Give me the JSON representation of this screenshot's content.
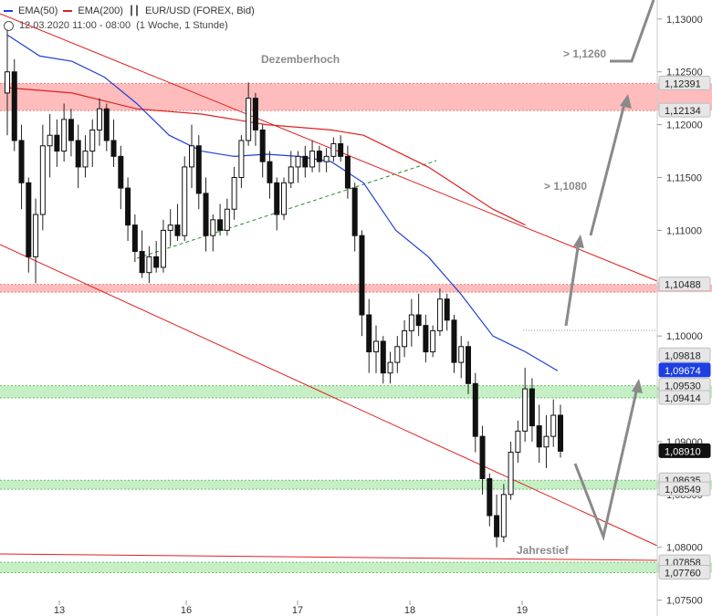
{
  "legend": {
    "ema50_label": "EMA(50)",
    "ema200_label": "EMA(200)",
    "symbol_label": "EUR/USD (FOREX, Bid)",
    "date_range": "12.03.2020 11:00 - 08:00",
    "timeframe": "(1 Woche, 1 Stunde)",
    "colors": {
      "ema50": "#1f3fd8",
      "ema200": "#e02020"
    }
  },
  "chart_data": {
    "type": "candlestick",
    "ylim": [
      1.0735,
      1.1318
    ],
    "y_ticks": [
      "1,13000",
      "1,12500",
      "1,12000",
      "1,11500",
      "1,11000",
      "1,10500",
      "1,10000",
      "1,09500",
      "1,09000",
      "1,08500",
      "1,08000",
      "1,07500"
    ],
    "y_tick_values": [
      1.13,
      1.125,
      1.12,
      1.115,
      1.11,
      1.105,
      1.1,
      1.095,
      1.09,
      1.085,
      1.08,
      1.075
    ],
    "x_ticks": [
      "13",
      "16",
      "17",
      "18",
      "19"
    ],
    "price_labels": [
      {
        "text": "1,12391",
        "value": 1.12391,
        "style": "grey"
      },
      {
        "text": "1,12134",
        "value": 1.12134,
        "style": "grey"
      },
      {
        "text": "1,10488",
        "value": 1.10488,
        "style": "grey"
      },
      {
        "text": "1,09818",
        "value": 1.09818,
        "style": "grey"
      },
      {
        "text": "1,09674",
        "value": 1.09674,
        "style": "blue"
      },
      {
        "text": "1,09530",
        "value": 1.0953,
        "style": "grey"
      },
      {
        "text": "1,09414",
        "value": 1.09414,
        "style": "grey"
      },
      {
        "text": "1,08910",
        "value": 1.0891,
        "style": "black"
      },
      {
        "text": "1,08635",
        "value": 1.08635,
        "style": "grey"
      },
      {
        "text": "1,08549",
        "value": 1.08549,
        "style": "grey"
      },
      {
        "text": "1,07858",
        "value": 1.07858,
        "style": "grey"
      },
      {
        "text": "1,07760",
        "value": 1.0776,
        "style": "grey"
      }
    ],
    "zones": [
      {
        "from": 1.12134,
        "to": 1.12391,
        "color": "red"
      },
      {
        "from": 1.10415,
        "to": 1.10488,
        "color": "red"
      },
      {
        "from": 1.09414,
        "to": 1.0953,
        "color": "green"
      },
      {
        "from": 1.08549,
        "to": 1.08635,
        "color": "green"
      },
      {
        "from": 1.0776,
        "to": 1.07858,
        "color": "green"
      }
    ],
    "annotations": [
      {
        "text": "Dezemberhoch",
        "x": 0.5,
        "y": 1.1255
      },
      {
        "text": "> 1,1260",
        "x": 0.7,
        "y": 1.1263
      },
      {
        "text": "> 1,1080",
        "x": 0.68,
        "y": 1.1082
      },
      {
        "text": "Jahrestief",
        "x": 0.7,
        "y": 1.076
      }
    ],
    "series": [
      {
        "name": "EMA(50)",
        "color": "#1f3fd8"
      },
      {
        "name": "EMA(200)",
        "color": "#e02020"
      }
    ],
    "ema50": [
      [
        0,
        1.1285
      ],
      [
        0.05,
        1.1265
      ],
      [
        0.1,
        1.126
      ],
      [
        0.15,
        1.1245
      ],
      [
        0.2,
        1.122
      ],
      [
        0.25,
        1.119
      ],
      [
        0.3,
        1.1175
      ],
      [
        0.35,
        1.117
      ],
      [
        0.4,
        1.1172
      ],
      [
        0.45,
        1.117
      ],
      [
        0.5,
        1.1165
      ],
      [
        0.55,
        1.1145
      ],
      [
        0.6,
        1.11
      ],
      [
        0.65,
        1.1075
      ],
      [
        0.7,
        1.104
      ],
      [
        0.75,
        1.1
      ],
      [
        0.8,
        1.0985
      ],
      [
        0.85,
        1.0967
      ]
    ],
    "ema200": [
      [
        0,
        1.1235
      ],
      [
        0.1,
        1.123
      ],
      [
        0.2,
        1.1215
      ],
      [
        0.3,
        1.121
      ],
      [
        0.4,
        1.12
      ],
      [
        0.5,
        1.1195
      ],
      [
        0.55,
        1.119
      ],
      [
        0.6,
        1.1175
      ],
      [
        0.65,
        1.116
      ],
      [
        0.7,
        1.114
      ],
      [
        0.75,
        1.112
      ],
      [
        0.8,
        1.1105
      ]
    ],
    "candles": [
      [
        1.123,
        1.129,
        1.119,
        1.125
      ],
      [
        1.125,
        1.1262,
        1.1175,
        1.1185
      ],
      [
        1.1185,
        1.12,
        1.112,
        1.1145
      ],
      [
        1.1145,
        1.115,
        1.106,
        1.1075
      ],
      [
        1.1075,
        1.113,
        1.105,
        1.1115
      ],
      [
        1.1115,
        1.12,
        1.11,
        1.118
      ],
      [
        1.118,
        1.121,
        1.115,
        1.119
      ],
      [
        1.119,
        1.1205,
        1.116,
        1.1175
      ],
      [
        1.1175,
        1.122,
        1.1165,
        1.1205
      ],
      [
        1.1205,
        1.1215,
        1.117,
        1.1185
      ],
      [
        1.1185,
        1.12,
        1.114,
        1.116
      ],
      [
        1.116,
        1.119,
        1.115,
        1.1175
      ],
      [
        1.1175,
        1.1205,
        1.116,
        1.1195
      ],
      [
        1.1195,
        1.1225,
        1.118,
        1.1215
      ],
      [
        1.1215,
        1.122,
        1.1175,
        1.1185
      ],
      [
        1.1185,
        1.1205,
        1.116,
        1.117
      ],
      [
        1.117,
        1.118,
        1.112,
        1.114
      ],
      [
        1.114,
        1.115,
        1.109,
        1.1105
      ],
      [
        1.1105,
        1.1115,
        1.107,
        1.108
      ],
      [
        1.108,
        1.11,
        1.1055,
        1.106
      ],
      [
        1.106,
        1.1085,
        1.105,
        1.1075
      ],
      [
        1.1075,
        1.109,
        1.106,
        1.1065
      ],
      [
        1.1065,
        1.111,
        1.106,
        1.11
      ],
      [
        1.11,
        1.112,
        1.1085,
        1.1105
      ],
      [
        1.1105,
        1.1125,
        1.109,
        1.1095
      ],
      [
        1.1095,
        1.117,
        1.109,
        1.116
      ],
      [
        1.116,
        1.12,
        1.114,
        1.118
      ],
      [
        1.118,
        1.119,
        1.112,
        1.1135
      ],
      [
        1.1135,
        1.115,
        1.108,
        1.1095
      ],
      [
        1.1095,
        1.1115,
        1.108,
        1.111
      ],
      [
        1.111,
        1.1125,
        1.1095,
        1.11
      ],
      [
        1.11,
        1.113,
        1.1095,
        1.112
      ],
      [
        1.112,
        1.116,
        1.111,
        1.115
      ],
      [
        1.115,
        1.119,
        1.114,
        1.1185
      ],
      [
        1.1185,
        1.124,
        1.118,
        1.1225
      ],
      [
        1.1225,
        1.123,
        1.118,
        1.1195
      ],
      [
        1.1195,
        1.12,
        1.115,
        1.1165
      ],
      [
        1.1165,
        1.1175,
        1.113,
        1.1145
      ],
      [
        1.1145,
        1.115,
        1.11,
        1.1115
      ],
      [
        1.1115,
        1.115,
        1.111,
        1.1145
      ],
      [
        1.1145,
        1.1175,
        1.114,
        1.116
      ],
      [
        1.116,
        1.1175,
        1.1145,
        1.117
      ],
      [
        1.117,
        1.118,
        1.115,
        1.116
      ],
      [
        1.116,
        1.1185,
        1.1155,
        1.1175
      ],
      [
        1.1175,
        1.118,
        1.1155,
        1.1165
      ],
      [
        1.1165,
        1.1178,
        1.1155,
        1.117
      ],
      [
        1.117,
        1.1188,
        1.1165,
        1.1182
      ],
      [
        1.1182,
        1.119,
        1.1165,
        1.117
      ],
      [
        1.117,
        1.118,
        1.113,
        1.114
      ],
      [
        1.114,
        1.1145,
        1.108,
        1.1095
      ],
      [
        1.1095,
        1.11,
        1.1,
        1.102
      ],
      [
        1.102,
        1.1035,
        1.0965,
        1.0985
      ],
      [
        1.0985,
        1.101,
        1.0965,
        1.0995
      ],
      [
        1.0995,
        1.1,
        1.0955,
        1.0965
      ],
      [
        1.0965,
        1.0985,
        1.0955,
        1.0975
      ],
      [
        1.0975,
        1.1,
        1.0965,
        1.099
      ],
      [
        1.099,
        1.1015,
        1.098,
        1.1005
      ],
      [
        1.1005,
        1.1035,
        1.099,
        1.102
      ],
      [
        1.102,
        1.104,
        1.1,
        1.101
      ],
      [
        1.101,
        1.102,
        1.0975,
        1.0985
      ],
      [
        1.0985,
        1.101,
        1.098,
        1.1005
      ],
      [
        1.1005,
        1.1045,
        1.1,
        1.1035
      ],
      [
        1.1035,
        1.104,
        1.1005,
        1.1015
      ],
      [
        1.1015,
        1.102,
        1.0965,
        1.0975
      ],
      [
        1.0975,
        1.1,
        1.096,
        1.099
      ],
      [
        1.099,
        1.0995,
        1.0945,
        1.0955
      ],
      [
        1.0955,
        1.0965,
        1.089,
        1.0905
      ],
      [
        1.0905,
        1.0915,
        1.085,
        1.0865
      ],
      [
        1.0865,
        1.087,
        1.082,
        1.083
      ],
      [
        1.083,
        1.085,
        1.08,
        1.081
      ],
      [
        1.081,
        1.086,
        1.0805,
        1.085
      ],
      [
        1.085,
        1.09,
        1.0845,
        1.089
      ],
      [
        1.089,
        1.092,
        1.088,
        1.091
      ],
      [
        1.091,
        1.097,
        1.09,
        1.095
      ],
      [
        1.095,
        1.096,
        1.09,
        1.0915
      ],
      [
        1.0915,
        1.0935,
        1.088,
        1.0895
      ],
      [
        1.0895,
        1.0925,
        1.0875,
        1.0905
      ],
      [
        1.0905,
        1.094,
        1.0895,
        1.0925
      ],
      [
        1.0925,
        1.0935,
        1.0885,
        1.0891
      ]
    ]
  }
}
